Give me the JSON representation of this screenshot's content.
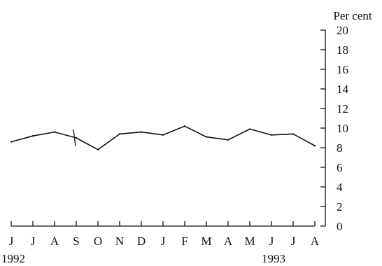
{
  "chart_data": {
    "type": "line",
    "title": "",
    "xlabel": "",
    "ylabel": "Per cent",
    "ylim": [
      0,
      20
    ],
    "y_ticks": [
      "0",
      "2",
      "4",
      "6",
      "8",
      "10",
      "12",
      "14",
      "16",
      "18",
      "20"
    ],
    "y_axis_side": "right",
    "grid": false,
    "legend": "none",
    "categories": [
      "J",
      "J",
      "A",
      "S",
      "O",
      "N",
      "D",
      "J",
      "F",
      "M",
      "A",
      "M",
      "J",
      "J",
      "A"
    ],
    "year_labels": [
      {
        "text": "1992",
        "category_index": 0
      },
      {
        "text": "1993",
        "category_index": 12
      }
    ],
    "series": [
      {
        "values": [
          8.6,
          9.2,
          9.6,
          9.0,
          7.8,
          9.4,
          9.6,
          9.3,
          10.2,
          9.1,
          8.8,
          9.9,
          9.3,
          9.4,
          8.2
        ],
        "color": "#111111"
      }
    ],
    "annotations": [
      {
        "type": "break-mark",
        "category_index": 3
      }
    ]
  }
}
